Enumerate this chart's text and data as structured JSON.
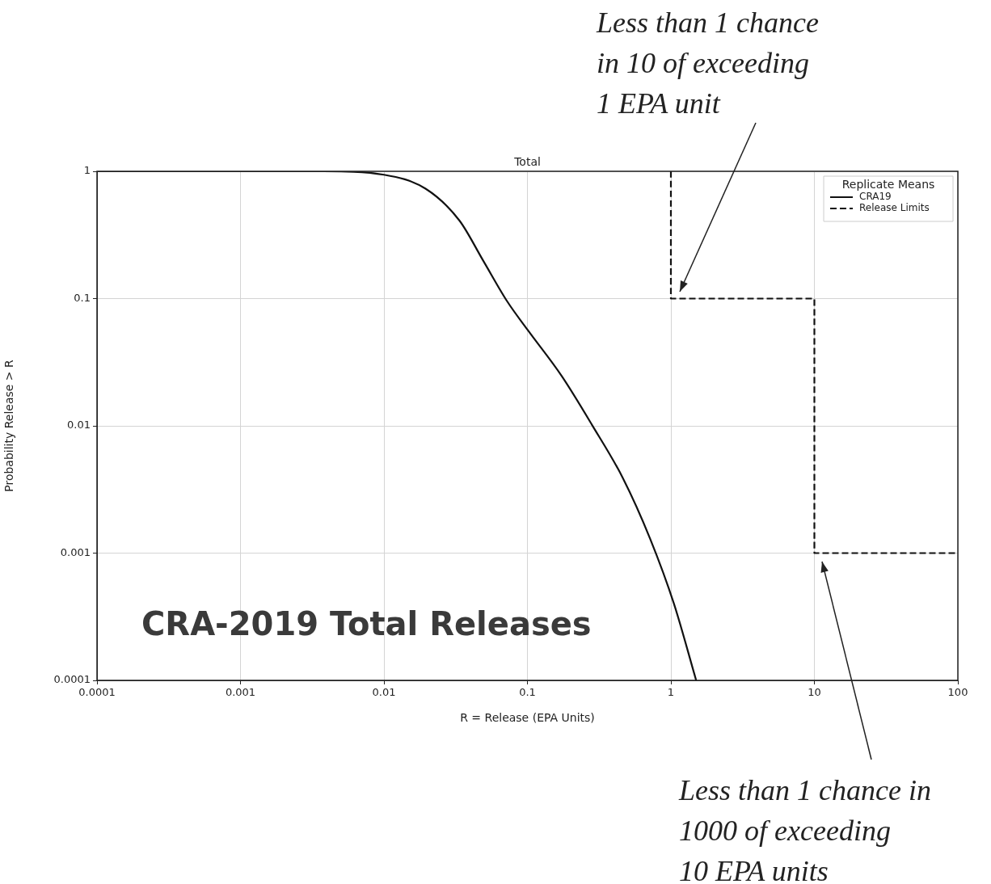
{
  "chart_data": {
    "type": "line",
    "title": "Total",
    "xlabel": "R = Release (EPA Units)",
    "ylabel": "Probability Release > R",
    "legend_title": "Replicate Means",
    "legend": "top right",
    "grid": true,
    "log": "xy",
    "xlim": [
      0.0001,
      100
    ],
    "ylim": [
      0.0001,
      1
    ],
    "xticks": [
      0.0001,
      0.001,
      0.01,
      0.1,
      1,
      10,
      100
    ],
    "yticks": [
      0.0001,
      0.001,
      0.01,
      0.1,
      1
    ],
    "series": [
      {
        "name": "CRA19",
        "color": "#111111",
        "line_style": "solid",
        "x": [
          0.0001,
          0.0038,
          0.01,
          0.0195,
          0.0336,
          0.049,
          0.0723,
          0.1,
          0.173,
          0.283,
          0.462,
          0.716,
          1.05,
          1.5
        ],
        "values": [
          1,
          1,
          0.94,
          0.73,
          0.41,
          0.2,
          0.095,
          0.057,
          0.0247,
          0.0101,
          0.0039,
          0.0013,
          0.0004,
          0.0001
        ]
      },
      {
        "name": "Release Limits",
        "color": "#111111",
        "line_style": "dashed",
        "x": [
          1,
          1,
          10,
          10,
          100
        ],
        "values": [
          1,
          0.1,
          0.1,
          0.001,
          0.001
        ]
      }
    ],
    "annotations": [
      "Less than 1 chance\nin 10 of exceeding\n1 EPA unit",
      "Less than 1 chance in\n1000 of exceeding\n10 EPA units",
      "CRA-2019 Total Releases"
    ]
  }
}
